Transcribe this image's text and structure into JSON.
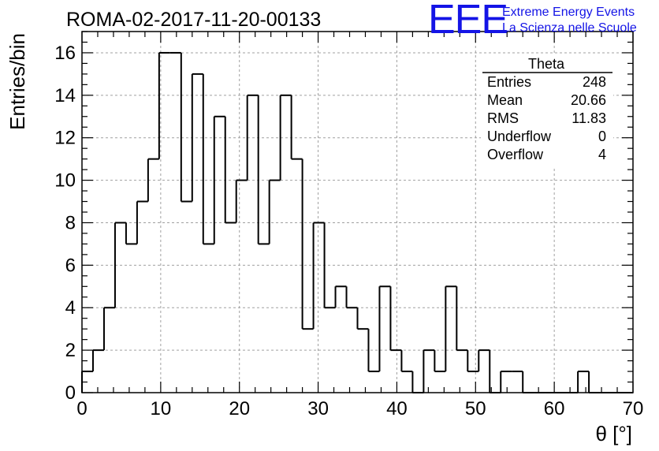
{
  "chart_data": {
    "type": "bar",
    "title": "ROMA-02-2017-11-20-00133",
    "xlabel": "θ [°]",
    "ylabel": "Entries/bin",
    "xlim": [
      0,
      70
    ],
    "ylim": [
      0,
      17
    ],
    "grid": true,
    "bin_width": 1.4,
    "x_ticks": [
      0,
      10,
      20,
      30,
      40,
      50,
      60,
      70
    ],
    "y_ticks": [
      0,
      2,
      4,
      6,
      8,
      10,
      12,
      14,
      16
    ],
    "values": [
      1,
      2,
      4,
      8,
      7,
      9,
      11,
      16,
      16,
      9,
      15,
      7,
      13,
      8,
      10,
      14,
      7,
      10,
      14,
      11,
      3,
      8,
      4,
      5,
      4,
      3,
      1,
      5,
      2,
      1,
      0,
      2,
      1,
      5,
      2,
      1,
      2,
      0,
      1,
      1,
      0,
      0,
      0,
      0,
      0,
      1,
      0,
      0,
      0,
      0
    ],
    "stats_box": {
      "title": "Theta",
      "position": "top-right",
      "rows": [
        {
          "label": "Entries",
          "value": "248"
        },
        {
          "label": "Mean",
          "value": "20.66"
        },
        {
          "label": "RMS",
          "value": "11.83"
        },
        {
          "label": "Underflow",
          "value": "0"
        },
        {
          "label": "Overflow",
          "value": "4"
        }
      ]
    }
  },
  "logo": {
    "mark": "EEE",
    "line1": "Extreme Energy Events",
    "line2": "La Scienza nelle Scuole",
    "color": "#1414e6"
  }
}
